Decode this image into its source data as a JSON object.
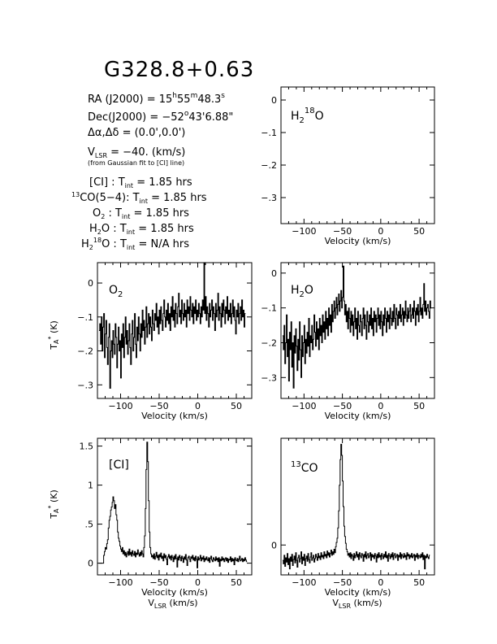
{
  "header": {
    "title": "G328.8+0.63",
    "ra": "RA (J2000) = 15h55m48.3s",
    "dec": "Dec(J2000) = −52°43'6.88\"",
    "offset": "Δα,Δδ = (0.0',0.0')",
    "vlsr": "VLSR = −40. (km/s)",
    "vlsr_note": "(from Gaussian fit to [CI] line)",
    "integrations": [
      "[CI] : Tint = 1.85 hrs",
      "13CO(5−4): Tint = 1.85 hrs",
      "O2 : Tint = 1.85 hrs",
      "H2O : Tint = 1.85 hrs",
      "H218O : Tint = N/A hrs"
    ]
  },
  "axis_text": {
    "xlabel": "Velocity (km/s)",
    "vlsr_label": "VLSR (km/s)",
    "ylabel": "TA* (K)"
  },
  "chart_data": [
    {
      "type": "line",
      "panel": "H2-18O",
      "label": "H218O",
      "xlim": [
        -130,
        70
      ],
      "ylim": [
        -0.38,
        0.04
      ],
      "xticks": [
        -100,
        -50,
        0,
        50
      ],
      "yticks": [
        0,
        -0.1,
        -0.2,
        -0.3
      ],
      "xlabel": "Velocity (km/s)",
      "series": []
    },
    {
      "type": "line",
      "panel": "O2",
      "label": "O2",
      "xlim": [
        -130,
        70
      ],
      "ylim": [
        -0.34,
        0.06
      ],
      "xticks": [
        -100,
        -50,
        0,
        50
      ],
      "yticks": [
        0,
        -0.1,
        -0.2,
        -0.3
      ],
      "xlabel": "Velocity (km/s)",
      "ylabel": "TA* (K)",
      "series": [
        {
          "x_start": -128,
          "x_step": 1.0,
          "values": [
            -0.14,
            -0.12,
            -0.18,
            -0.1,
            -0.2,
            -0.13,
            -0.09,
            -0.22,
            -0.15,
            -0.11,
            -0.19,
            -0.24,
            -0.16,
            -0.12,
            -0.31,
            -0.2,
            -0.17,
            -0.22,
            -0.14,
            -0.18,
            -0.21,
            -0.12,
            -0.16,
            -0.25,
            -0.18,
            -0.13,
            -0.2,
            -0.17,
            -0.28,
            -0.15,
            -0.19,
            -0.12,
            -0.22,
            -0.16,
            -0.1,
            -0.18,
            -0.14,
            -0.21,
            -0.17,
            -0.12,
            -0.19,
            -0.24,
            -0.15,
            -0.11,
            -0.2,
            -0.16,
            -0.09,
            -0.18,
            -0.22,
            -0.13,
            -0.17,
            -0.1,
            -0.15,
            -0.2,
            -0.12,
            -0.16,
            -0.08,
            -0.14,
            -0.11,
            -0.18,
            -0.13,
            -0.07,
            -0.16,
            -0.12,
            -0.09,
            -0.15,
            -0.1,
            -0.13,
            -0.17,
            -0.08,
            -0.12,
            -0.14,
            -0.09,
            -0.11,
            -0.06,
            -0.13,
            -0.1,
            -0.15,
            -0.08,
            -0.12,
            -0.07,
            -0.11,
            -0.14,
            -0.09,
            -0.05,
            -0.1,
            -0.13,
            -0.08,
            -0.11,
            -0.06,
            -0.12,
            -0.09,
            -0.14,
            -0.07,
            -0.1,
            -0.04,
            -0.11,
            -0.08,
            -0.13,
            -0.06,
            -0.09,
            -0.12,
            -0.07,
            -0.03,
            -0.1,
            -0.08,
            -0.12,
            -0.05,
            -0.09,
            -0.11,
            -0.06,
            -0.1,
            -0.08,
            -0.13,
            -0.05,
            -0.09,
            -0.07,
            -0.11,
            -0.04,
            -0.08,
            -0.1,
            -0.06,
            -0.12,
            -0.07,
            -0.09,
            -0.05,
            -0.11,
            -0.08,
            -0.1,
            -0.06,
            -0.09,
            -0.12,
            -0.07,
            -0.1,
            -0.05,
            -0.08,
            0.06,
            -0.09,
            -0.04,
            -0.11,
            -0.07,
            -0.09,
            -0.13,
            -0.06,
            -0.1,
            -0.08,
            -0.05,
            -0.11,
            -0.07,
            -0.09,
            -0.14,
            -0.06,
            -0.1,
            -0.08,
            -0.03,
            -0.11,
            -0.07,
            -0.09,
            -0.13,
            -0.06,
            -0.1,
            -0.05,
            -0.08,
            -0.12,
            -0.07,
            -0.09,
            -0.04,
            -0.11,
            -0.08,
            -0.1,
            -0.06,
            -0.12,
            -0.09,
            -0.05,
            -0.1,
            -0.07,
            -0.11,
            -0.15,
            -0.08,
            -0.1,
            -0.06,
            -0.12,
            -0.09,
            -0.07,
            -0.11,
            -0.05,
            -0.1,
            -0.08,
            -0.13,
            -0.09
          ]
        }
      ]
    },
    {
      "type": "line",
      "panel": "H2O",
      "label": "H2O",
      "xlim": [
        -130,
        70
      ],
      "ylim": [
        -0.36,
        0.03
      ],
      "xticks": [
        -100,
        -50,
        0,
        50
      ],
      "yticks": [
        0,
        -0.1,
        -0.2,
        -0.3
      ],
      "xlabel": "Velocity (km/s)",
      "series": [
        {
          "x_start": -128,
          "x_step": 1.0,
          "values": [
            -0.18,
            -0.22,
            -0.15,
            -0.26,
            -0.2,
            -0.12,
            -0.24,
            -0.19,
            -0.31,
            -0.17,
            -0.22,
            -0.14,
            -0.27,
            -0.2,
            -0.33,
            -0.18,
            -0.23,
            -0.16,
            -0.21,
            -0.28,
            -0.19,
            -0.25,
            -0.14,
            -0.22,
            -0.3,
            -0.18,
            -0.24,
            -0.2,
            -0.15,
            -0.26,
            -0.19,
            -0.23,
            -0.17,
            -0.21,
            -0.13,
            -0.24,
            -0.18,
            -0.2,
            -0.15,
            -0.22,
            -0.19,
            -0.12,
            -0.17,
            -0.21,
            -0.14,
            -0.19,
            -0.16,
            -0.22,
            -0.13,
            -0.18,
            -0.15,
            -0.2,
            -0.12,
            -0.17,
            -0.14,
            -0.19,
            -0.11,
            -0.16,
            -0.13,
            -0.18,
            -0.1,
            -0.15,
            -0.12,
            -0.17,
            -0.09,
            -0.14,
            -0.11,
            -0.08,
            -0.13,
            -0.1,
            -0.07,
            -0.12,
            -0.09,
            -0.06,
            -0.11,
            -0.08,
            -0.05,
            -0.1,
            -0.07,
            0.02,
            -0.08,
            -0.12,
            -0.09,
            -0.14,
            -0.11,
            -0.16,
            -0.1,
            -0.13,
            -0.17,
            -0.11,
            -0.15,
            -0.12,
            -0.18,
            -0.14,
            -0.1,
            -0.16,
            -0.13,
            -0.19,
            -0.11,
            -0.15,
            -0.17,
            -0.12,
            -0.14,
            -0.18,
            -0.13,
            -0.1,
            -0.16,
            -0.12,
            -0.15,
            -0.19,
            -0.11,
            -0.14,
            -0.17,
            -0.12,
            -0.15,
            -0.1,
            -0.16,
            -0.13,
            -0.18,
            -0.11,
            -0.14,
            -0.12,
            -0.17,
            -0.13,
            -0.1,
            -0.15,
            -0.12,
            -0.16,
            -0.11,
            -0.14,
            -0.18,
            -0.12,
            -0.15,
            -0.1,
            -0.13,
            -0.17,
            -0.11,
            -0.14,
            -0.12,
            -0.16,
            -0.1,
            -0.13,
            -0.15,
            -0.11,
            -0.14,
            -0.09,
            -0.13,
            -0.16,
            -0.1,
            -0.12,
            -0.15,
            -0.11,
            -0.13,
            -0.09,
            -0.14,
            -0.12,
            -0.1,
            -0.15,
            -0.11,
            -0.13,
            -0.08,
            -0.12,
            -0.14,
            -0.1,
            -0.13,
            -0.11,
            -0.09,
            -0.14,
            -0.12,
            -0.1,
            -0.13,
            -0.08,
            -0.11,
            -0.15,
            -0.1,
            -0.12,
            -0.09,
            -0.14,
            -0.11,
            -0.07,
            -0.12,
            -0.1,
            -0.13,
            -0.09,
            -0.03,
            -0.11,
            -0.08,
            -0.12,
            -0.1,
            -0.09,
            -0.11,
            -0.13,
            -0.08,
            -0.1
          ]
        }
      ]
    },
    {
      "type": "line",
      "panel": "CI",
      "label": "[CI]",
      "xlim": [
        -130,
        70
      ],
      "ylim": [
        -0.15,
        1.6
      ],
      "xticks": [
        -100,
        -50,
        0,
        50
      ],
      "yticks": [
        0,
        0.5,
        1,
        1.5
      ],
      "xlabel": "Velocity (km/s)",
      "ylabel": "TA* (K)",
      "series": [
        {
          "x_start": -128,
          "x_step": 1.0,
          "values": [
            0.0,
            0.0,
            0.0,
            0.0,
            0.0,
            0.0,
            0.1,
            0.15,
            0.2,
            0.18,
            0.25,
            0.3,
            0.45,
            0.55,
            0.6,
            0.68,
            0.72,
            0.78,
            0.85,
            0.8,
            0.7,
            0.75,
            0.62,
            0.55,
            0.4,
            0.32,
            0.28,
            0.22,
            0.18,
            0.15,
            0.2,
            0.12,
            0.16,
            0.1,
            0.14,
            0.08,
            0.12,
            0.15,
            0.1,
            0.18,
            0.11,
            0.14,
            0.09,
            0.16,
            0.12,
            0.1,
            0.15,
            0.08,
            0.13,
            0.11,
            0.17,
            0.12,
            0.09,
            0.14,
            0.1,
            0.16,
            0.12,
            0.08,
            0.2,
            0.35,
            0.7,
            1.2,
            1.55,
            1.3,
            0.8,
            0.4,
            0.2,
            0.12,
            0.08,
            0.1,
            0.06,
            0.12,
            0.05,
            0.09,
            0.14,
            0.07,
            0.1,
            0.04,
            0.11,
            0.08,
            0.13,
            0.06,
            0.09,
            0.03,
            0.12,
            0.07,
            0.1,
            0.05,
            -0.02,
            0.08,
            0.11,
            0.06,
            0.09,
            0.04,
            0.1,
            0.07,
            0.02,
            0.09,
            0.05,
            0.11,
            0.06,
            -0.05,
            0.08,
            0.04,
            0.1,
            0.07,
            0.03,
            0.09,
            0.06,
            0.01,
            0.08,
            0.05,
            0.11,
            0.04,
            -0.03,
            0.07,
            0.09,
            0.05,
            0.02,
            0.08,
            0.06,
            0.1,
            0.04,
            0.07,
            0.03,
            0.09,
            0.05,
            -0.06,
            0.08,
            0.04,
            0.06,
            0.1,
            0.03,
            0.07,
            0.05,
            0.09,
            0.02,
            0.06,
            0.04,
            0.08,
            0.05,
            0.03,
            0.07,
            0.01,
            0.06,
            0.09,
            0.04,
            0.02,
            0.07,
            0.05,
            0.03,
            0.08,
            0.04,
            0.06,
            0.02,
            0.07,
            -0.04,
            0.05,
            0.03,
            0.08,
            0.04,
            0.06,
            0.02,
            0.05,
            0.07,
            0.03,
            0.06,
            0.01,
            0.05,
            0.04,
            0.08,
            0.02,
            0.06,
            0.03,
            0.05,
            -0.02,
            0.07,
            0.04,
            0.03,
            0.06,
            0.02,
            0.05,
            0.09,
            0.03,
            0.04,
            0.06,
            0.02,
            0.05,
            0.03,
            0.07,
            0.04,
            0.02
          ]
        }
      ]
    },
    {
      "type": "line",
      "panel": "13CO",
      "label": "13CO",
      "xlim": [
        -130,
        70
      ],
      "ylim": [
        -0.35,
        1.25
      ],
      "xticks": [
        -100,
        -50,
        0,
        50
      ],
      "yticks": [
        0
      ],
      "xlabel": "Velocity (km/s)",
      "series": [
        {
          "x_start": -128,
          "x_step": 1.0,
          "values": [
            -0.18,
            -0.22,
            -0.12,
            -0.25,
            -0.15,
            -0.2,
            -0.1,
            -0.23,
            -0.16,
            -0.28,
            -0.14,
            -0.19,
            -0.11,
            -0.24,
            -0.17,
            -0.13,
            -0.21,
            -0.09,
            -0.18,
            -0.26,
            -0.15,
            -0.12,
            -0.2,
            -0.16,
            -0.08,
            -0.22,
            -0.14,
            -0.18,
            -0.11,
            -0.24,
            -0.16,
            -0.13,
            -0.19,
            -0.1,
            -0.17,
            -0.21,
            -0.14,
            -0.09,
            -0.18,
            -0.15,
            -0.12,
            -0.2,
            -0.16,
            -0.11,
            -0.14,
            -0.18,
            -0.1,
            -0.15,
            -0.13,
            -0.17,
            -0.09,
            -0.14,
            -0.12,
            -0.16,
            -0.08,
            -0.13,
            -0.11,
            -0.15,
            -0.07,
            -0.12,
            -0.09,
            -0.14,
            -0.1,
            -0.06,
            -0.12,
            -0.08,
            -0.11,
            -0.05,
            -0.09,
            -0.02,
            0.03,
            0.08,
            0.2,
            0.4,
            0.7,
            1.0,
            1.18,
            1.05,
            0.75,
            0.45,
            0.22,
            0.1,
            0.02,
            -0.05,
            -0.08,
            -0.12,
            -0.1,
            -0.14,
            -0.09,
            -0.16,
            -0.11,
            -0.13,
            -0.18,
            -0.1,
            -0.15,
            -0.12,
            -0.08,
            -0.14,
            -0.11,
            -0.17,
            -0.09,
            -0.13,
            -0.15,
            -0.1,
            -0.12,
            -0.19,
            -0.11,
            -0.14,
            -0.08,
            -0.16,
            -0.12,
            -0.1,
            -0.15,
            -0.13,
            -0.09,
            -0.18,
            -0.11,
            -0.14,
            -0.12,
            -0.16,
            -0.1,
            -0.13,
            -0.2,
            -0.11,
            -0.15,
            -0.09,
            -0.14,
            -0.12,
            -0.17,
            -0.1,
            -0.13,
            -0.16,
            -0.11,
            -0.14,
            -0.08,
            -0.15,
            -0.12,
            -0.19,
            -0.1,
            -0.13,
            -0.16,
            -0.11,
            -0.14,
            -0.09,
            -0.17,
            -0.12,
            -0.1,
            -0.15,
            -0.13,
            -0.11,
            -0.18,
            -0.12,
            -0.14,
            -0.09,
            -0.16,
            -0.11,
            -0.13,
            -0.15,
            -0.1,
            -0.14,
            -0.12,
            -0.17,
            -0.09,
            -0.13,
            -0.11,
            -0.16,
            -0.12,
            -0.14,
            -0.1,
            -0.15,
            -0.13,
            -0.11,
            -0.18,
            -0.12,
            -0.14,
            -0.1,
            -0.16,
            -0.12,
            -0.13,
            -0.15,
            -0.11,
            -0.14,
            -0.09,
            -0.17,
            -0.12,
            -0.28,
            -0.13,
            -0.15,
            -0.11,
            -0.14,
            -0.16,
            -0.12
          ]
        }
      ]
    }
  ]
}
